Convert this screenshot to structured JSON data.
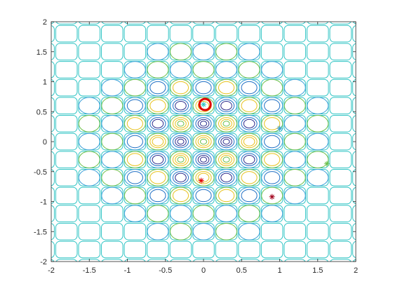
{
  "chart_data": {
    "type": "contour",
    "title": "",
    "xlabel": "",
    "ylabel": "",
    "xlim": [
      -2,
      2
    ],
    "ylim": [
      -2,
      2
    ],
    "grid": false,
    "legend": "none",
    "x_ticks": [
      -2,
      -1.5,
      -1,
      -0.5,
      0,
      0.5,
      1,
      1.5,
      2
    ],
    "y_ticks": [
      -2,
      -1.5,
      -1,
      -0.5,
      0,
      0.5,
      1,
      1.5,
      2
    ],
    "x_tick_labels": [
      "-2",
      "-1.5",
      "-1",
      "-0.5",
      "0",
      "0.5",
      "1",
      "1.5",
      "2"
    ],
    "y_tick_labels": [
      "-2",
      "-1.5",
      "-1",
      "-0.5",
      "0",
      "0.5",
      "1",
      "1.5",
      "2"
    ],
    "contour_function": "sin(10x)*sin(10y)*exp(-(x^2+y^2))",
    "lattice_spacing": 0.3,
    "contour_colors": {
      "low": "#2c2c8c",
      "mid_low": "#1f6fc4",
      "mid": "#3aa0d8",
      "mid_high": "#6cc04a",
      "high": "#e8c21c",
      "outer": "#2ec4c4"
    },
    "markers": [
      {
        "name": "red-circle",
        "symbol": "o",
        "x": 0.02,
        "y": 0.62,
        "color": "#e00000"
      },
      {
        "name": "cyan-star-top",
        "symbol": "*",
        "x": 0.0,
        "y": 0.62,
        "color": "#2ec4c4"
      },
      {
        "name": "cyan-star-right",
        "symbol": "*",
        "x": 1.0,
        "y": 0.22,
        "color": "#3aa0d8"
      },
      {
        "name": "green-star",
        "symbol": "*",
        "x": 1.62,
        "y": -0.37,
        "color": "#6cc04a"
      },
      {
        "name": "red-star-bottom",
        "symbol": "*",
        "x": -0.03,
        "y": -0.65,
        "color": "#e00000"
      },
      {
        "name": "darkred-star",
        "symbol": "*",
        "x": 0.9,
        "y": -0.92,
        "color": "#a0001a"
      }
    ]
  }
}
